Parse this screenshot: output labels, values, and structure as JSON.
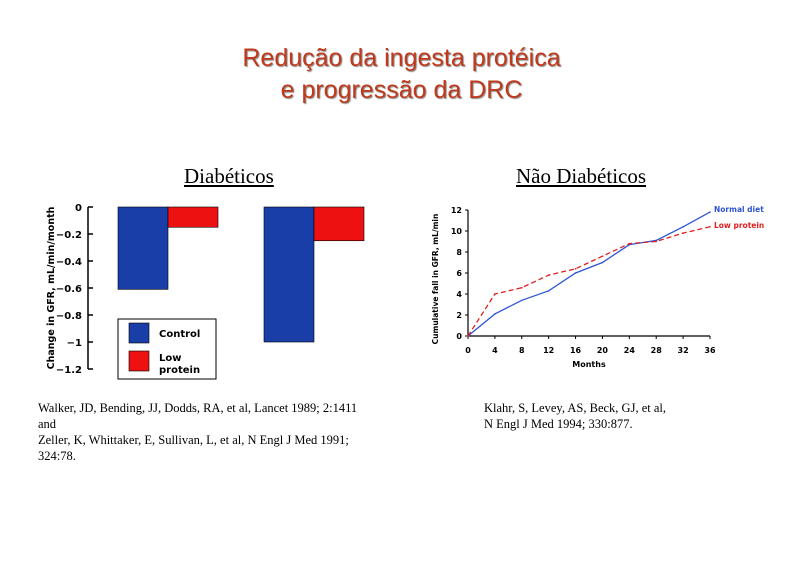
{
  "title": {
    "line1": "Redução da ingesta protéica",
    "line2": "e progressão da DRC"
  },
  "left_panel": {
    "heading": "Diabéticos",
    "citation": "Walker, JD, Bending, JJ, Dodds, RA, et al, Lancet 1989; 2:1411\nand\nZeller, K, Whittaker, E, Sullivan, L, et al, N Engl J Med 1991;\n324:78."
  },
  "right_panel": {
    "heading": "Não Diabéticos",
    "citation": "Klahr, S, Levey, AS, Beck, GJ, et al,\n N Engl J Med 1994; 330:877."
  },
  "chart_data": [
    {
      "type": "bar",
      "categories": [
        "",
        ""
      ],
      "ylabel": "Change in GFR, mL/min/month",
      "ylim": [
        -1.2,
        0
      ],
      "yticks": [
        "0",
        "-0.2",
        "-0.4",
        "-0.6",
        "-0.8",
        "-1",
        "-1.2"
      ],
      "series": [
        {
          "name": "Control",
          "color": "#1a3ea8",
          "values": [
            -0.61,
            -1.0
          ]
        },
        {
          "name": "Low protein",
          "color": "#ee1111",
          "values": [
            -0.15,
            -0.25
          ]
        }
      ],
      "legend": {
        "placement": "lower-left",
        "control_label": "Control",
        "low_label_1": "Low",
        "low_label_2": "protein"
      }
    },
    {
      "type": "line",
      "xlabel": "Months",
      "ylabel": "Cumulative fall in GFR, mL/min",
      "xlim": [
        0,
        36
      ],
      "ylim": [
        0,
        12
      ],
      "xticks": [
        "0",
        "4",
        "8",
        "12",
        "16",
        "20",
        "24",
        "28",
        "32",
        "36"
      ],
      "yticks": [
        "0",
        "2",
        "4",
        "6",
        "8",
        "10",
        "12"
      ],
      "x": [
        0,
        4,
        8,
        12,
        16,
        20,
        24,
        28,
        32,
        36
      ],
      "series": [
        {
          "name": "Normal diet",
          "color": "#2f55d4",
          "dash": "solid",
          "values": [
            0,
            2.1,
            3.4,
            4.3,
            6.0,
            7.0,
            8.7,
            9.1,
            10.4,
            11.8
          ]
        },
        {
          "name": "Low protein",
          "color": "#e02020",
          "dash": "dashed",
          "values": [
            0,
            4.0,
            4.6,
            5.8,
            6.4,
            7.6,
            8.8,
            9.0,
            9.8,
            10.4
          ]
        }
      ]
    }
  ]
}
